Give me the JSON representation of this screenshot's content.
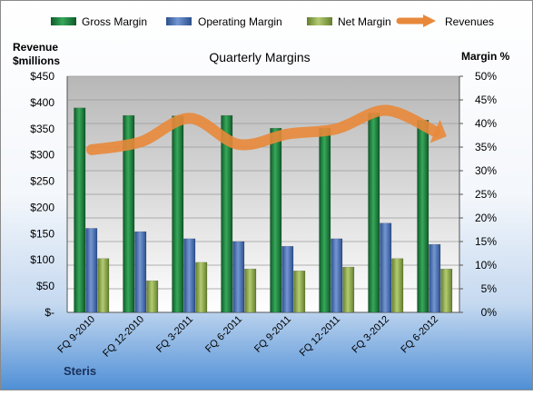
{
  "chart_data": {
    "type": "bar",
    "title": "Quarterly Margins",
    "company": "Steris",
    "y_left_label": [
      "Revenue",
      "$millions"
    ],
    "y_right_label": "Margin %",
    "y_left_ticks": [
      "$-",
      "$50",
      "$100",
      "$150",
      "$200",
      "$250",
      "$300",
      "$350",
      "$400",
      "$450"
    ],
    "y_right_ticks": [
      "0%",
      "5%",
      "10%",
      "15%",
      "20%",
      "25%",
      "30%",
      "35%",
      "40%",
      "45%",
      "50%"
    ],
    "ylim_left": [
      0,
      450
    ],
    "ylim_right": [
      0,
      50
    ],
    "grid": true,
    "legend_position": "top",
    "categories": [
      "FQ 9-2010",
      "FQ 12-2010",
      "FQ 3-2011",
      "FQ 6-2011",
      "FQ 9-2011",
      "FQ 12-2011",
      "FQ 3-2012",
      "FQ 6-2012"
    ],
    "series": [
      {
        "name": "Gross Margin",
        "kind": "bar",
        "axis": "right",
        "color": "#1f7a3a",
        "values": [
          43.3,
          41.7,
          41.6,
          41.7,
          39.0,
          39.0,
          42.2,
          40.7
        ]
      },
      {
        "name": "Operating Margin",
        "kind": "bar",
        "axis": "right",
        "color": "#4a6eb0",
        "values": [
          17.8,
          17.1,
          15.6,
          15.0,
          14.0,
          15.6,
          18.9,
          14.4
        ]
      },
      {
        "name": "Net Margin",
        "kind": "bar",
        "axis": "right",
        "color": "#8aa84a",
        "values": [
          11.4,
          6.7,
          10.6,
          9.2,
          8.8,
          9.6,
          11.4,
          9.2
        ]
      },
      {
        "name": "Revenues",
        "kind": "line",
        "axis": "left",
        "color": "#e8883a",
        "values": [
          310,
          325,
          370,
          320,
          340,
          350,
          385,
          345
        ]
      }
    ]
  }
}
